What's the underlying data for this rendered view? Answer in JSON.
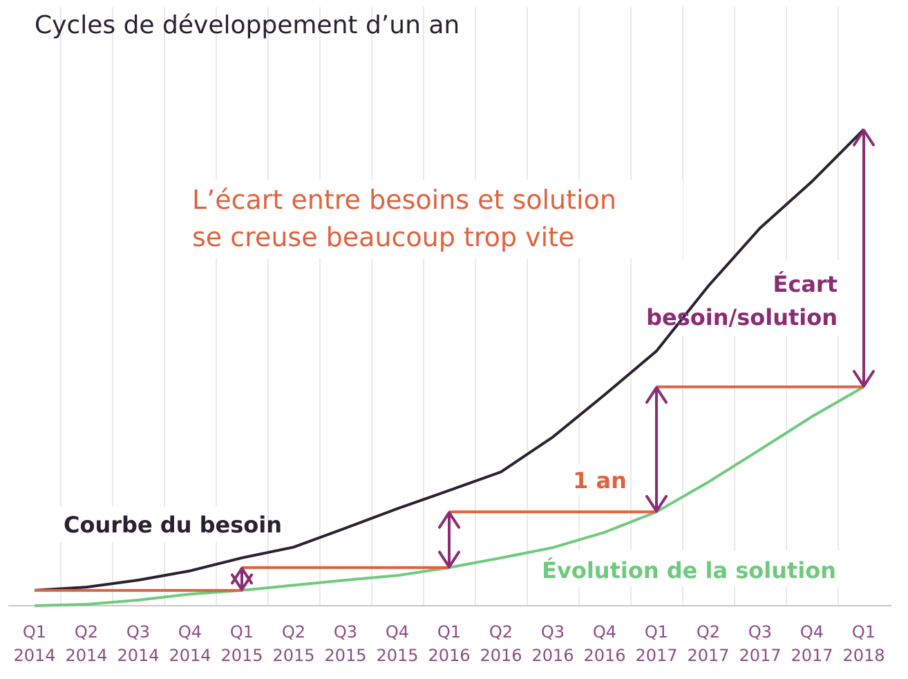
{
  "chart_data": {
    "type": "line",
    "title": "Cycles de développement d’un an",
    "headline": [
      "L’écart entre besoins et solution",
      "se creuse beaucoup trop vite"
    ],
    "categories": [
      [
        "Q1",
        "2014"
      ],
      [
        "Q2",
        "2014"
      ],
      [
        "Q3",
        "2014"
      ],
      [
        "Q4",
        "2014"
      ],
      [
        "Q1",
        "2015"
      ],
      [
        "Q2",
        "2015"
      ],
      [
        "Q3",
        "2015"
      ],
      [
        "Q4",
        "2015"
      ],
      [
        "Q1",
        "2016"
      ],
      [
        "Q2",
        "2016"
      ],
      [
        "Q3",
        "2016"
      ],
      [
        "Q4",
        "2016"
      ],
      [
        "Q1",
        "2017"
      ],
      [
        "Q2",
        "2017"
      ],
      [
        "Q3",
        "2017"
      ],
      [
        "Q4",
        "2017"
      ],
      [
        "Q1",
        "2018"
      ]
    ],
    "ylim": [
      0,
      100
    ],
    "grid": "vertical",
    "series": [
      {
        "name": "Courbe du besoin",
        "color": "#2a2130",
        "points": [
          [
            0,
            3.3
          ],
          [
            1,
            4
          ],
          [
            2,
            5.5
          ],
          [
            3,
            7.5
          ],
          [
            4,
            10.3
          ],
          [
            5,
            12.6
          ],
          [
            6,
            16.7
          ],
          [
            7,
            20.9
          ],
          [
            8,
            24.8
          ],
          [
            9,
            28.8
          ],
          [
            10,
            36.3
          ],
          [
            11,
            45.4
          ],
          [
            12,
            54.8
          ],
          [
            13,
            68.8
          ],
          [
            14,
            81.3
          ],
          [
            15,
            91.3
          ],
          [
            16,
            102.5
          ]
        ]
      },
      {
        "name": "Évolution de la solution",
        "color": "#6fca7e",
        "points": [
          [
            0,
            0
          ],
          [
            1,
            0.3
          ],
          [
            2,
            1.2
          ],
          [
            3,
            2.5
          ],
          [
            4,
            3.3
          ],
          [
            5,
            4.4
          ],
          [
            6,
            5.5
          ],
          [
            7,
            6.5
          ],
          [
            8,
            8.2
          ],
          [
            9,
            10.3
          ],
          [
            10,
            12.5
          ],
          [
            11,
            15.8
          ],
          [
            12,
            20.2
          ],
          [
            13,
            26.6
          ],
          [
            14,
            33.6
          ],
          [
            15,
            40.7
          ],
          [
            16,
            47.1
          ]
        ]
      }
    ],
    "delay_lines": {
      "color": "#e0623d",
      "segments": [
        [
          0,
          3.3,
          4,
          3.3
        ],
        [
          4,
          8.2,
          8,
          8.2
        ],
        [
          8,
          20.2,
          12,
          20.2
        ],
        [
          12,
          47.1,
          16,
          47.1
        ]
      ]
    },
    "gap_arrows": {
      "color": "#8b2c74",
      "items": [
        [
          4,
          3.3,
          8.2
        ],
        [
          8,
          8.2,
          20.2
        ],
        [
          12,
          20.2,
          47.1
        ],
        [
          16,
          47.1,
          102.5
        ]
      ]
    },
    "annotations": {
      "need": "Courbe du besoin",
      "solution": "Évolution de la solution",
      "year": "1 an",
      "gap_line1": "Écart",
      "gap_line2": "besoin/solution"
    }
  }
}
